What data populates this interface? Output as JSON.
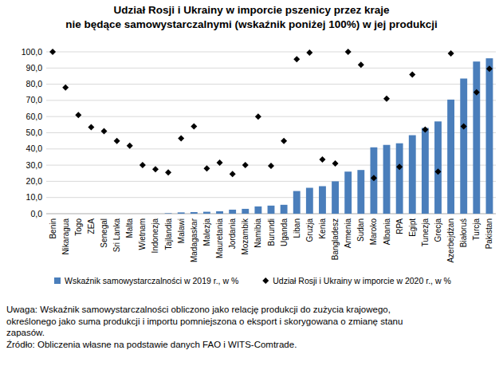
{
  "chart_data": {
    "type": "bar",
    "title": [
      "Udział Rosji i Ukrainy w imporcie pszenicy przez kraje",
      "nie będące samowystarczalnymi (wskaźnik poniżej 100%) w jej produkcji"
    ],
    "categories": [
      "Benin",
      "Nikaragua",
      "Togo",
      "ZEA",
      "Senegal",
      "Sri Lanka",
      "Malta",
      "Wietnam",
      "Indonezja",
      "Tajlandia",
      "Malawi",
      "Madagaskar",
      "Malezja",
      "Mauretania",
      "Jordania",
      "Mozambik",
      "Namibia",
      "Burundi",
      "Uganda",
      "Liban",
      "Gruzja",
      "Kenia",
      "Bangladesz",
      "Armenia",
      "Sudan",
      "Maroko",
      "Albania",
      "RPA",
      "Egipt",
      "Tunezja",
      "Grecja",
      "Azerbejdżan",
      "Białoruś",
      "Turcja",
      "Pakistan"
    ],
    "series": [
      {
        "name": "Wskaźnik samowystarczalności w 2019 r., w %",
        "type": "bar",
        "color": "#4a7ebb",
        "values": [
          0,
          0,
          0,
          0,
          0,
          0,
          0,
          0,
          0,
          0.3,
          0.8,
          1,
          1.2,
          1.5,
          2.5,
          3,
          4.5,
          5,
          5.5,
          14,
          16,
          17,
          20,
          26,
          27,
          41,
          42.5,
          43.5,
          48.5,
          53,
          57,
          70.5,
          83.5,
          94,
          96
        ]
      },
      {
        "name": "Udział Rosji i Ukrainy w imporcie w 2020 r., w %",
        "type": "scatter",
        "marker": "diamond",
        "color": "#000000",
        "values": [
          100,
          78,
          61,
          53.5,
          51,
          45,
          42,
          30,
          27.5,
          25.5,
          46.5,
          54,
          28,
          31.5,
          24.5,
          30,
          60,
          29.5,
          45,
          95.5,
          99.5,
          33.5,
          31,
          100,
          92,
          22,
          71,
          29,
          86,
          52,
          26,
          99,
          54,
          75,
          89.5
        ]
      }
    ],
    "ylim": [
      0,
      100
    ],
    "yticks": [
      {
        "value": 0,
        "label": "0,0"
      },
      {
        "value": 10,
        "label": "10,0"
      },
      {
        "value": 20,
        "label": "20,0"
      },
      {
        "value": 30,
        "label": "30,0"
      },
      {
        "value": 40,
        "label": "40,0"
      },
      {
        "value": 50,
        "label": "50,0"
      },
      {
        "value": 60,
        "label": "60,0"
      },
      {
        "value": 70,
        "label": "70,0"
      },
      {
        "value": 80,
        "label": "80,0"
      },
      {
        "value": 90,
        "label": "90,0"
      },
      {
        "value": 100,
        "label": "100,0"
      }
    ],
    "grid": true,
    "legend": "bottom",
    "annotations": [
      "Uwaga: Wskaźnik samowystarczalności obliczono jako relację produkcji do zużycia krajowego,",
      "określonego jako suma produkcji i importu pomniejszona o eksport i skorygowana o zmianę stanu",
      "zapasów.",
      "Źródło: Obliczenia własne na podstawie danych FAO i WITS-Comtrade."
    ]
  }
}
